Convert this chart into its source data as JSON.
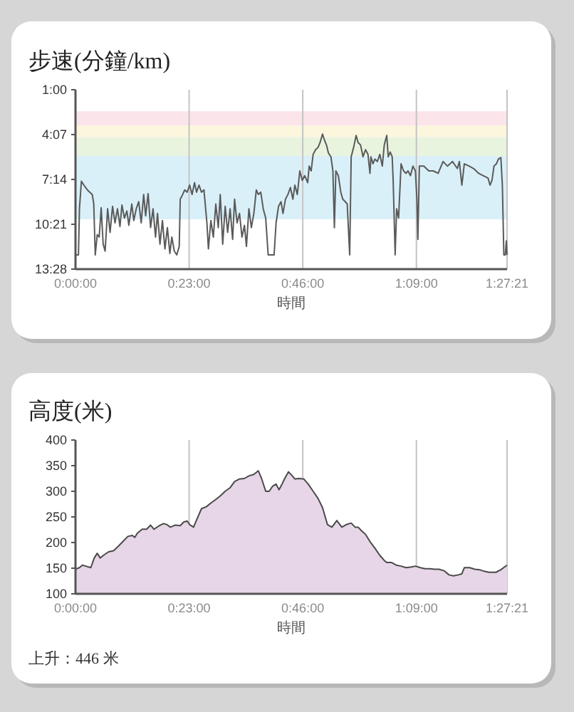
{
  "chart_data": [
    {
      "type": "line",
      "title": "步速(分鐘/km)",
      "xlabel": "時間",
      "xlim": [
        0,
        87.35
      ],
      "ylim": [
        13.467,
        1
      ],
      "xticks": [
        {
          "value": 0,
          "label": "0:00:00"
        },
        {
          "value": 23,
          "label": "0:23:00"
        },
        {
          "value": 46,
          "label": "0:46:00"
        },
        {
          "value": 69,
          "label": "1:09:00"
        },
        {
          "value": 87.35,
          "label": "1:27:21"
        }
      ],
      "yticks": [
        {
          "value": 1,
          "label": "1:00"
        },
        {
          "value": 4.117,
          "label": "4:07"
        },
        {
          "value": 7.233,
          "label": "7:14"
        },
        {
          "value": 10.35,
          "label": "10:21"
        },
        {
          "value": 13.467,
          "label": "13:28"
        }
      ],
      "grid": "x",
      "bands": [
        {
          "axis": "y",
          "from": 2.5,
          "to": 3.5,
          "color": "#fbe4ea"
        },
        {
          "axis": "y",
          "from": 3.5,
          "to": 4.3,
          "color": "#fbf6dc"
        },
        {
          "axis": "y",
          "from": 4.3,
          "to": 5.6,
          "color": "#e9f4df"
        },
        {
          "axis": "y",
          "from": 5.6,
          "to": 10.0,
          "color": "#daf0f9"
        }
      ],
      "series": [
        {
          "color": "#5a5a5a",
          "x": [
            0,
            0.6,
            0.8,
            1.2,
            1.7,
            2.4,
            2.9,
            3.4,
            3.7,
            4.0,
            4.4,
            4.8,
            5.2,
            5.6,
            6.0,
            6.5,
            7.0,
            7.5,
            8.0,
            8.5,
            9.0,
            9.4,
            9.9,
            10.4,
            10.8,
            11.4,
            11.8,
            12.3,
            12.8,
            13.3,
            13.8,
            14.2,
            14.7,
            15.2,
            15.7,
            16.2,
            16.6,
            17.1,
            17.6,
            18.1,
            18.6,
            19.1,
            19.5,
            20.0,
            20.5,
            21.0,
            21.2,
            21.7,
            22.1,
            22.6,
            23.1,
            23.6,
            24.1,
            24.5,
            25.0,
            25.5,
            26.0,
            26.6,
            26.9,
            27.4,
            27.9,
            28.4,
            28.9,
            29.3,
            29.8,
            30.3,
            30.8,
            31.3,
            31.8,
            32.2,
            32.7,
            33.2,
            33.7,
            34.2,
            34.6,
            35.1,
            35.6,
            36.1,
            36.6,
            37.0,
            37.5,
            38.0,
            38.5,
            39.0,
            40.2,
            40.6,
            41.1,
            41.6,
            42.0,
            42.5,
            43.0,
            43.5,
            44.0,
            44.4,
            44.9,
            45.4,
            45.9,
            46.4,
            47.0,
            47.3,
            47.7,
            48.1,
            48.6,
            49.1,
            49.5,
            50.0,
            50.4,
            50.8,
            51.2,
            51.7,
            52.1,
            52.4,
            52.7,
            53.2,
            53.7,
            54.1,
            54.6,
            55.0,
            55.5,
            55.8,
            56.3,
            56.8,
            57.2,
            57.7,
            58.2,
            58.7,
            59.2,
            59.6,
            59.8,
            60.2,
            60.6,
            61.1,
            61.6,
            62.1,
            62.5,
            63.0,
            63.3,
            63.7,
            64.1,
            64.3,
            64.7,
            65.0,
            65.4,
            65.9,
            66.4,
            66.9,
            67.3,
            67.8,
            68.3,
            68.8,
            69.1,
            69.3,
            69.6,
            70.5,
            71.5,
            72.4,
            73.4,
            74.4,
            75.3,
            76.3,
            77.3,
            77.7,
            78.2,
            78.7,
            79.7,
            80.6,
            81.6,
            82.5,
            83.5,
            83.9,
            84.3,
            84.7,
            85.2,
            85.6,
            86.1,
            86.4,
            86.7,
            87.0,
            87.2,
            87.35
          ],
          "values": [
            12.48,
            12.48,
            9.27,
            7.36,
            7.63,
            7.96,
            8.12,
            8.28,
            8.94,
            12.48,
            11.07,
            11.24,
            9.2,
            11.73,
            12.22,
            9.27,
            10.91,
            9.1,
            10.25,
            9.27,
            10.51,
            9.01,
            9.92,
            9.43,
            10.42,
            8.94,
            10.09,
            9.27,
            8.78,
            10.25,
            8.28,
            9.76,
            8.22,
            10.58,
            9.27,
            11.24,
            9.6,
            11.73,
            10.09,
            12.06,
            10.58,
            12.38,
            11.24,
            12.22,
            12.48,
            11.89,
            8.61,
            8.28,
            7.96,
            8.12,
            7.63,
            8.28,
            7.46,
            8.12,
            7.63,
            8.12,
            7.96,
            10.25,
            12.06,
            10.09,
            11.24,
            8.94,
            10.58,
            8.28,
            11.73,
            9.1,
            10.91,
            9.27,
            11.4,
            8.61,
            10.25,
            9.6,
            11.24,
            10.42,
            11.89,
            9.27,
            10.58,
            9.6,
            7.96,
            8.28,
            8.12,
            9.27,
            9.92,
            12.48,
            12.48,
            10.25,
            9.1,
            8.78,
            9.6,
            8.61,
            8.28,
            7.79,
            8.61,
            7.63,
            8.28,
            6.64,
            7.3,
            6.97,
            7.46,
            6.31,
            6.64,
            5.49,
            5.17,
            5.0,
            4.67,
            4.08,
            4.51,
            4.84,
            5.4,
            5.66,
            6.64,
            10.58,
            6.64,
            6.97,
            8.12,
            8.61,
            8.78,
            8.94,
            12.48,
            5.66,
            5.0,
            4.18,
            4.67,
            4.84,
            5.66,
            5.17,
            5.49,
            6.81,
            5.66,
            6.15,
            5.82,
            5.99,
            5.49,
            6.31,
            4.84,
            4.18,
            5.66,
            5.33,
            5.66,
            7.3,
            12.48,
            9.27,
            9.92,
            6.15,
            6.64,
            6.81,
            6.64,
            6.97,
            6.31,
            6.64,
            8.61,
            11.4,
            6.31,
            6.31,
            6.64,
            6.64,
            6.81,
            5.99,
            6.31,
            5.99,
            6.48,
            5.99,
            7.63,
            6.15,
            6.31,
            6.48,
            6.81,
            6.97,
            7.14,
            7.63,
            7.3,
            6.31,
            6.15,
            5.82,
            5.72,
            7.63,
            12.48,
            12.48,
            11.5,
            12.48
          ]
        }
      ]
    },
    {
      "type": "area",
      "title": "高度(米)",
      "xlabel": "時間",
      "xlim": [
        0,
        87.35
      ],
      "ylim": [
        100,
        400
      ],
      "xticks": [
        {
          "value": 0,
          "label": "0:00:00"
        },
        {
          "value": 23,
          "label": "0:23:00"
        },
        {
          "value": 46,
          "label": "0:46:00"
        },
        {
          "value": 69,
          "label": "1:09:00"
        },
        {
          "value": 87.35,
          "label": "1:27:21"
        }
      ],
      "yticks": [
        100,
        150,
        200,
        250,
        300,
        350,
        400
      ],
      "grid": "x",
      "annotations": [
        "上升：446 米"
      ],
      "series": [
        {
          "color": "#e6d6e7",
          "x": [
            0,
            0.8,
            1.4,
            2.1,
            3.1,
            3.8,
            4.4,
            5.0,
            5.8,
            6.7,
            7.7,
            8.7,
            9.6,
            10.6,
            11.5,
            12.0,
            12.5,
            13.5,
            14.4,
            15.2,
            15.9,
            16.8,
            17.8,
            18.5,
            19.2,
            20.2,
            21.2,
            21.9,
            22.6,
            23.1,
            23.9,
            24.5,
            25.5,
            26.5,
            27.4,
            28.4,
            29.3,
            30.3,
            31.3,
            32.2,
            33.2,
            34.2,
            35.1,
            36.1,
            37.0,
            37.7,
            38.5,
            39.2,
            39.9,
            40.6,
            41.2,
            41.8,
            42.3,
            43.1,
            43.8,
            44.4,
            45.2,
            46.2,
            47.1,
            48.1,
            49.1,
            50.0,
            51.0,
            51.9,
            52.9,
            53.9,
            54.8,
            55.8,
            56.6,
            57.2,
            57.9,
            58.7,
            59.6,
            60.6,
            61.6,
            62.5,
            63.0,
            64.0,
            64.9,
            65.9,
            66.9,
            67.8,
            68.8,
            69.8,
            70.7,
            71.7,
            72.7,
            73.6,
            74.6,
            75.6,
            76.5,
            77.5,
            78.2,
            78.7,
            79.8,
            80.8,
            81.8,
            82.7,
            83.7,
            85.1,
            86.1,
            87.35
          ],
          "values": [
            148,
            151,
            156,
            154,
            151,
            170,
            179,
            170,
            176,
            182,
            184,
            193,
            202,
            212,
            214,
            210,
            218,
            226,
            226,
            234,
            226,
            232,
            237,
            235,
            230,
            234,
            233,
            240,
            242,
            235,
            230,
            244,
            266,
            270,
            277,
            284,
            291,
            300,
            307,
            319,
            324,
            325,
            330,
            333,
            340,
            324,
            300,
            300,
            310,
            314,
            303,
            314,
            324,
            338,
            331,
            324,
            325,
            324,
            314,
            300,
            286,
            268,
            235,
            230,
            243,
            230,
            235,
            238,
            230,
            230,
            223,
            216,
            202,
            189,
            175,
            165,
            161,
            161,
            156,
            154,
            151,
            152,
            154,
            151,
            149,
            149,
            148,
            148,
            145,
            137,
            135,
            137,
            139,
            151,
            151,
            148,
            147,
            144,
            142,
            142,
            147,
            156
          ]
        }
      ]
    }
  ]
}
